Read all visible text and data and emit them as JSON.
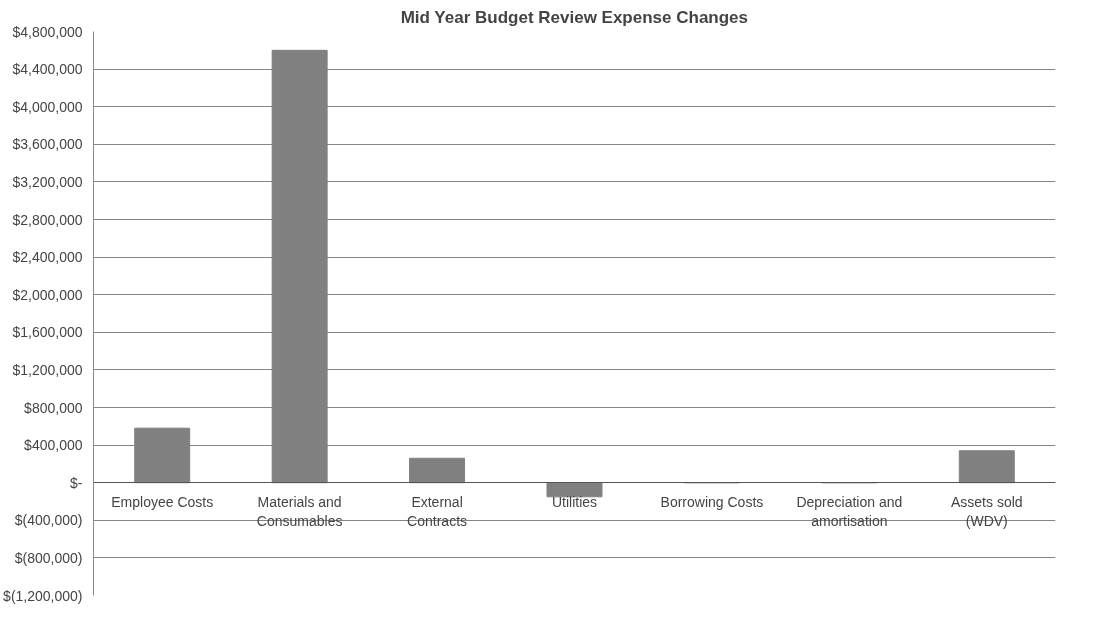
{
  "chart_data": {
    "type": "bar",
    "title": "Mid Year Budget Review Expense Changes",
    "categories": [
      "Employee Costs",
      "Materials and Consumables",
      "External Contracts",
      "Utilities",
      "Borrowing Costs",
      "Depreciation and amortisation",
      "Assets sold (WDV)"
    ],
    "values": [
      580000,
      4600000,
      260000,
      -150000,
      0,
      0,
      340000
    ],
    "color": "#808080",
    "ylim": [
      -1200000,
      4800000
    ],
    "yticks": [
      {
        "value": -1200000,
        "label": "$(1,200,000)"
      },
      {
        "value": -800000,
        "label": "$(800,000)"
      },
      {
        "value": -400000,
        "label": "$(400,000)"
      },
      {
        "value": 0,
        "label": "$-"
      },
      {
        "value": 400000,
        "label": "$400,000"
      },
      {
        "value": 800000,
        "label": "$800,000"
      },
      {
        "value": 1200000,
        "label": "$1,200,000"
      },
      {
        "value": 1600000,
        "label": "$1,600,000"
      },
      {
        "value": 2000000,
        "label": "$2,000,000"
      },
      {
        "value": 2400000,
        "label": "$2,400,000"
      },
      {
        "value": 2800000,
        "label": "$2,800,000"
      },
      {
        "value": 3200000,
        "label": "$3,200,000"
      },
      {
        "value": 3600000,
        "label": "$3,600,000"
      },
      {
        "value": 4000000,
        "label": "$4,000,000"
      },
      {
        "value": 4400000,
        "label": "$4,400,000"
      },
      {
        "value": 4800000,
        "label": "$4,800,000"
      }
    ],
    "grid": "y"
  }
}
